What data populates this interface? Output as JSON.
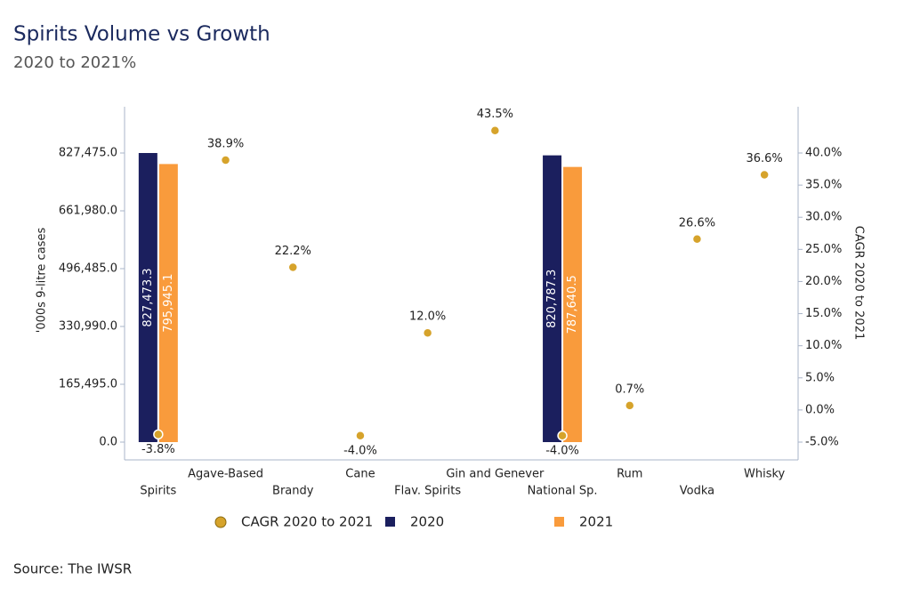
{
  "chart_data": {
    "type": "bar",
    "title": "Spirits Volume vs Growth",
    "subtitle": "2020 to 2021%",
    "source": "Source: The IWSR",
    "y_label": "'000s 9-litre cases",
    "y2_label": "CAGR 2020 to 2021",
    "categories": [
      "Spirits",
      "Agave-Based",
      "Brandy",
      "Cane",
      "Flav. Spirits",
      "Gin and Genever",
      "National Sp.",
      "Rum",
      "Vodka",
      "Whisky"
    ],
    "series": [
      {
        "name": "2020",
        "type": "bar",
        "color": "#1b1f5e",
        "values": [
          827473.3,
          null,
          null,
          null,
          null,
          null,
          820787.3,
          null,
          null,
          null
        ],
        "value_labels": [
          "827,473.3",
          null,
          null,
          null,
          null,
          null,
          "820,787.3",
          null,
          null,
          null
        ]
      },
      {
        "name": "2021",
        "type": "bar",
        "color": "#f99b3c",
        "values": [
          795945.1,
          null,
          null,
          null,
          null,
          null,
          787640.5,
          null,
          null,
          null
        ],
        "value_labels": [
          "795,945.1",
          null,
          null,
          null,
          null,
          null,
          "787,640.5",
          null,
          null,
          null
        ]
      },
      {
        "name": "CAGR 2020 to 2021",
        "type": "scatter",
        "axis": "y2",
        "color": "#d6a32b",
        "values": [
          -3.8,
          38.9,
          22.2,
          -4.0,
          12.0,
          43.5,
          -4.0,
          0.7,
          26.6,
          36.6
        ],
        "value_labels": [
          "-3.8%",
          "38.9%",
          "22.2%",
          "-4.0%",
          "12.0%",
          "43.5%",
          "-4.0%",
          "0.7%",
          "26.6%",
          "36.6%"
        ]
      }
    ],
    "ylim": [
      -50920,
      959900
    ],
    "yticks": [
      {
        "value": 0,
        "label": "0.0"
      },
      {
        "value": 165495,
        "label": "165,495.0"
      },
      {
        "value": 330990,
        "label": "330,990.0"
      },
      {
        "value": 496485,
        "label": "496,485.0"
      },
      {
        "value": 661980,
        "label": "661,980.0"
      },
      {
        "value": 827475,
        "label": "827,475.0"
      }
    ],
    "y2lim": [
      -7.77,
      47.2
    ],
    "y2ticks": [
      {
        "value": -5,
        "label": "-5.0%"
      },
      {
        "value": 0,
        "label": "0.0%"
      },
      {
        "value": 5,
        "label": "5.0%"
      },
      {
        "value": 10,
        "label": "10.0%"
      },
      {
        "value": 15,
        "label": "15.0%"
      },
      {
        "value": 20,
        "label": "20.0%"
      },
      {
        "value": 25,
        "label": "25.0%"
      },
      {
        "value": 30,
        "label": "30.0%"
      },
      {
        "value": 35,
        "label": "35.0%"
      },
      {
        "value": 40,
        "label": "40.0%"
      }
    ]
  }
}
